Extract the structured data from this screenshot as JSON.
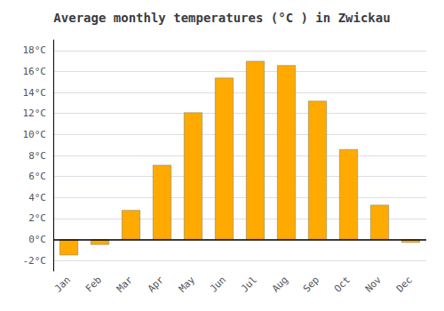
{
  "chart_data": {
    "type": "bar",
    "title": "Average monthly temperatures (°C ) in Zwickau",
    "categories": [
      "Jan",
      "Feb",
      "Mar",
      "Apr",
      "May",
      "Jun",
      "Jul",
      "Aug",
      "Sep",
      "Oct",
      "Nov",
      "Dec"
    ],
    "values": [
      -1.5,
      -0.5,
      2.8,
      7.1,
      12.1,
      15.4,
      17.0,
      16.6,
      13.2,
      8.6,
      3.3,
      -0.3
    ],
    "color": "#FFAA00",
    "ylim": [
      -3,
      19
    ],
    "yticks": [
      {
        "value": -2,
        "label": "-2°C"
      },
      {
        "value": 0,
        "label": "0°C"
      },
      {
        "value": 2,
        "label": "2°C"
      },
      {
        "value": 4,
        "label": "4°C"
      },
      {
        "value": 6,
        "label": "6°C"
      },
      {
        "value": 8,
        "label": "8°C"
      },
      {
        "value": 10,
        "label": "10°C"
      },
      {
        "value": 12,
        "label": "12°C"
      },
      {
        "value": 14,
        "label": "14°C"
      },
      {
        "value": 16,
        "label": "16°C"
      },
      {
        "value": 18,
        "label": "18°C"
      }
    ],
    "grid": true
  }
}
